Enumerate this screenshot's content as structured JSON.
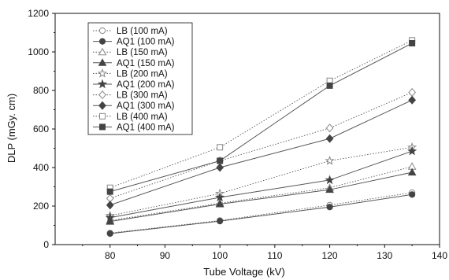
{
  "chart_data": {
    "type": "line",
    "xlabel": "Tube Voltage (kV)",
    "ylabel": "DLP (mGy. cm)",
    "xlim": [
      70,
      140
    ],
    "ylim": [
      0,
      1200
    ],
    "xticks": [
      80,
      90,
      100,
      110,
      120,
      130,
      140
    ],
    "yticks": [
      0,
      200,
      400,
      600,
      800,
      1000,
      1200
    ],
    "legend_position": "top-left",
    "grid": false,
    "x": [
      80,
      100,
      120,
      135
    ],
    "series": [
      {
        "name": "LB (100  mA)",
        "marker": "circle-open",
        "line": "dotted",
        "values": [
          60,
          125,
          205,
          270
        ]
      },
      {
        "name": "AQ1 (100 mA)",
        "marker": "circle-filled",
        "line": "solid",
        "values": [
          57,
          122,
          195,
          260
        ]
      },
      {
        "name": "LB (150  mA)",
        "marker": "triangle-open",
        "line": "dotted",
        "values": [
          125,
          215,
          295,
          405
        ]
      },
      {
        "name": "AQ1 (150  mA)",
        "marker": "triangle-filled",
        "line": "solid",
        "values": [
          120,
          210,
          285,
          375
        ]
      },
      {
        "name": "LB (200  mA)",
        "marker": "star-open",
        "line": "dotted",
        "values": [
          150,
          265,
          435,
          505
        ]
      },
      {
        "name": "AQ1 (200  mA)",
        "marker": "star-filled",
        "line": "solid",
        "values": [
          140,
          245,
          335,
          485
        ]
      },
      {
        "name": "LB (300  mA)",
        "marker": "diamond-open",
        "line": "dotted",
        "values": [
          240,
          435,
          605,
          790
        ]
      },
      {
        "name": "AQ1 (300  mA)",
        "marker": "diamond-filled",
        "line": "solid",
        "values": [
          205,
          400,
          550,
          750
        ]
      },
      {
        "name": "LB (400  mA)",
        "marker": "square-open",
        "line": "dotted",
        "values": [
          295,
          505,
          850,
          1060
        ]
      },
      {
        "name": "AQ1 (400  mA)",
        "marker": "square-filled",
        "line": "solid",
        "values": [
          275,
          435,
          825,
          1045
        ]
      }
    ],
    "colors": {
      "line": "#555555",
      "marker": "#444444",
      "open_marker": "#888888",
      "axis": "#111111"
    }
  }
}
